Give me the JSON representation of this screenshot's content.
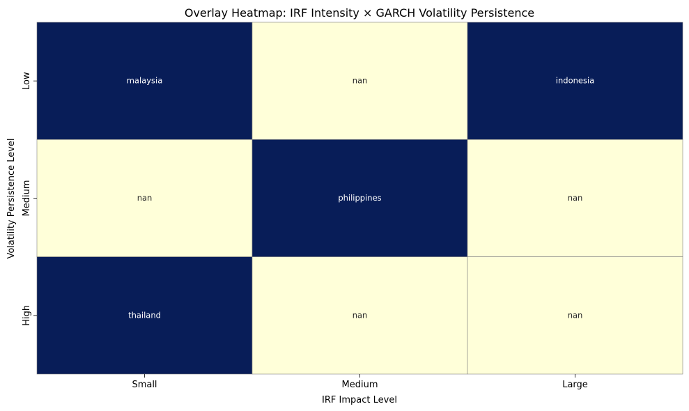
{
  "chart_data": {
    "type": "heatmap",
    "title": "Overlay Heatmap: IRF Intensity × GARCH Volatility Persistence",
    "xlabel": "IRF Impact Level",
    "ylabel": "Volatility Persistence Level",
    "x_categories": [
      "Small",
      "Medium",
      "Large"
    ],
    "y_categories": [
      "Low",
      "Medium",
      "High"
    ],
    "cells": [
      [
        "malaysia",
        "nan",
        "indonesia"
      ],
      [
        "nan",
        "philippines",
        "nan"
      ],
      [
        "thailand",
        "nan",
        "nan"
      ]
    ],
    "filled": [
      [
        1,
        0,
        1
      ],
      [
        0,
        1,
        0
      ],
      [
        1,
        0,
        0
      ]
    ],
    "colors": {
      "filled": "#081d58",
      "empty": "#ffffd9",
      "filled_text": "#ffffff",
      "empty_text": "#262626",
      "grid": "#808080"
    },
    "colorbar": false
  }
}
